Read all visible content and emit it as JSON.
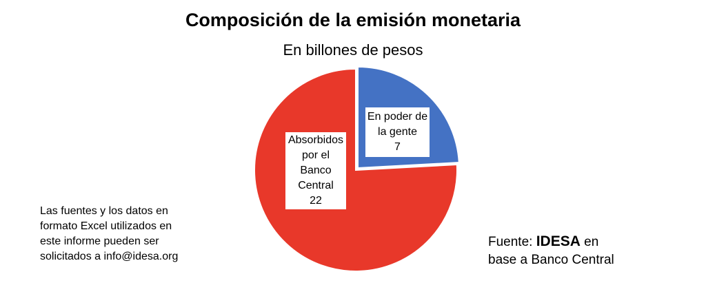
{
  "chart_data": {
    "type": "pie",
    "title": "Composición de la emisión monetaria",
    "subtitle": "En billones de pesos",
    "slices": [
      {
        "label": "En poder de la gente",
        "label_lines": [
          "En poder de",
          "la gente"
        ],
        "value": 7,
        "color": "#4472C4"
      },
      {
        "label": "Absorbidos por el Banco Central",
        "label_lines": [
          "Absorbidos",
          "por el",
          "Banco",
          "Central"
        ],
        "value": 22,
        "color": "#E8382A"
      }
    ]
  },
  "note_lines": [
    "Las fuentes y los datos en",
    "formato Excel utilizados en",
    "este informe pueden ser",
    "solicitados a info@idesa.org"
  ],
  "source": {
    "prefix": "Fuente: ",
    "brand": "IDESA",
    "suffix_1": " en",
    "line_2": "base a Banco Central"
  }
}
